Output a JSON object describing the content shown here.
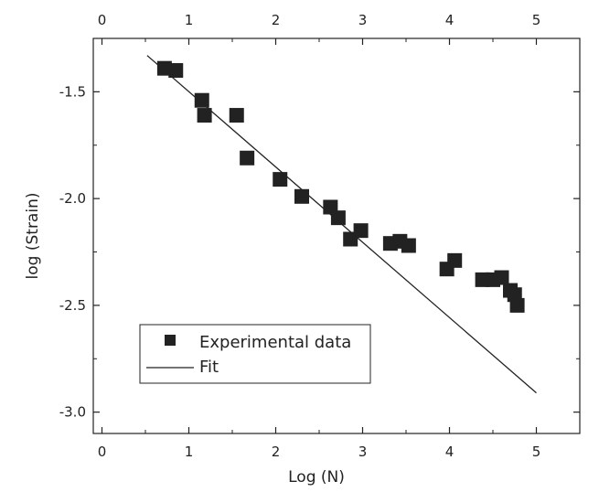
{
  "chart_data": {
    "type": "scatter",
    "xlabel": "Log (N)",
    "ylabel": "log (Strain)",
    "xlim": [
      -0.1,
      5.5
    ],
    "ylim": [
      -3.1,
      -1.25
    ],
    "x_ticks": [
      0,
      1,
      2,
      3,
      4,
      5
    ],
    "x_tick_labels": [
      "0",
      "1",
      "2",
      "3",
      "4",
      "5"
    ],
    "y_ticks": [
      -3.0,
      -2.5,
      -2.0,
      -1.5
    ],
    "y_tick_labels": [
      "-3.0",
      "-2.5",
      "-2.0",
      "-1.5"
    ],
    "top_axis_ticks": [
      0,
      1,
      2,
      3,
      4,
      5
    ],
    "top_axis_tick_labels": [
      "0",
      "1",
      "2",
      "3",
      "4",
      "5"
    ],
    "grid": false,
    "legend": {
      "position": "bottom-left",
      "entries": [
        {
          "label": "Experimental data",
          "marker": "square"
        },
        {
          "label": "Fit",
          "marker": "line"
        }
      ]
    },
    "series": [
      {
        "name": "Experimental data",
        "type": "scatter",
        "marker": "square",
        "color": "#222222",
        "points": [
          [
            0.72,
            -1.39
          ],
          [
            0.85,
            -1.4
          ],
          [
            1.15,
            -1.54
          ],
          [
            1.18,
            -1.61
          ],
          [
            1.55,
            -1.61
          ],
          [
            1.67,
            -1.81
          ],
          [
            2.05,
            -1.91
          ],
          [
            2.3,
            -1.99
          ],
          [
            2.63,
            -2.04
          ],
          [
            2.72,
            -2.09
          ],
          [
            2.86,
            -2.19
          ],
          [
            2.98,
            -2.15
          ],
          [
            3.32,
            -2.21
          ],
          [
            3.43,
            -2.2
          ],
          [
            3.53,
            -2.22
          ],
          [
            3.97,
            -2.33
          ],
          [
            4.06,
            -2.29
          ],
          [
            4.38,
            -2.38
          ],
          [
            4.5,
            -2.38
          ],
          [
            4.6,
            -2.37
          ],
          [
            4.7,
            -2.43
          ],
          [
            4.75,
            -2.45
          ],
          [
            4.78,
            -2.5
          ]
        ]
      },
      {
        "name": "Fit",
        "type": "line",
        "color": "#222222",
        "points": [
          [
            0.52,
            -1.33
          ],
          [
            5.0,
            -2.91
          ]
        ]
      }
    ]
  }
}
